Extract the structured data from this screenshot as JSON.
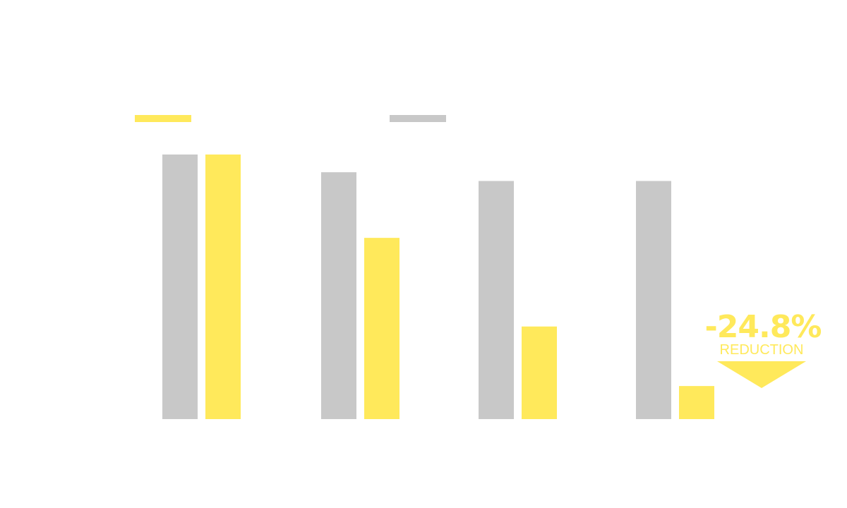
{
  "colors": {
    "series_a": "#C8C8C8",
    "series_b": "#FFE95B",
    "callout": "#FFE95B"
  },
  "chart_data": {
    "type": "bar",
    "categories": [
      "",
      "",
      "",
      ""
    ],
    "series": [
      {
        "color": "#C8C8C8",
        "values": [
          100,
          93.3,
          90,
          90
        ]
      },
      {
        "color": "#FFE95B",
        "values": [
          100,
          68.5,
          35,
          12.5
        ]
      }
    ],
    "ylim": [
      0,
      100
    ],
    "grid": false,
    "legend": {
      "position": "top-left",
      "entries": [
        {
          "color": "#FFE95B"
        },
        {
          "color": "#C8C8C8"
        }
      ]
    },
    "annotation": {
      "value_text": "-24.8%",
      "label_text": "REDUCTION"
    }
  }
}
